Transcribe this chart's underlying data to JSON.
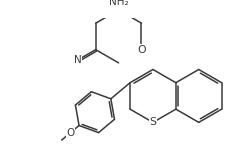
{
  "bg": "#ffffff",
  "lc": "#3a3a3a",
  "lw": 1.1,
  "figsize": [
    2.53,
    1.46
  ],
  "dpi": 100,
  "atoms": {
    "NH2": "NH₂",
    "O": "O",
    "S": "S",
    "N": "N"
  }
}
